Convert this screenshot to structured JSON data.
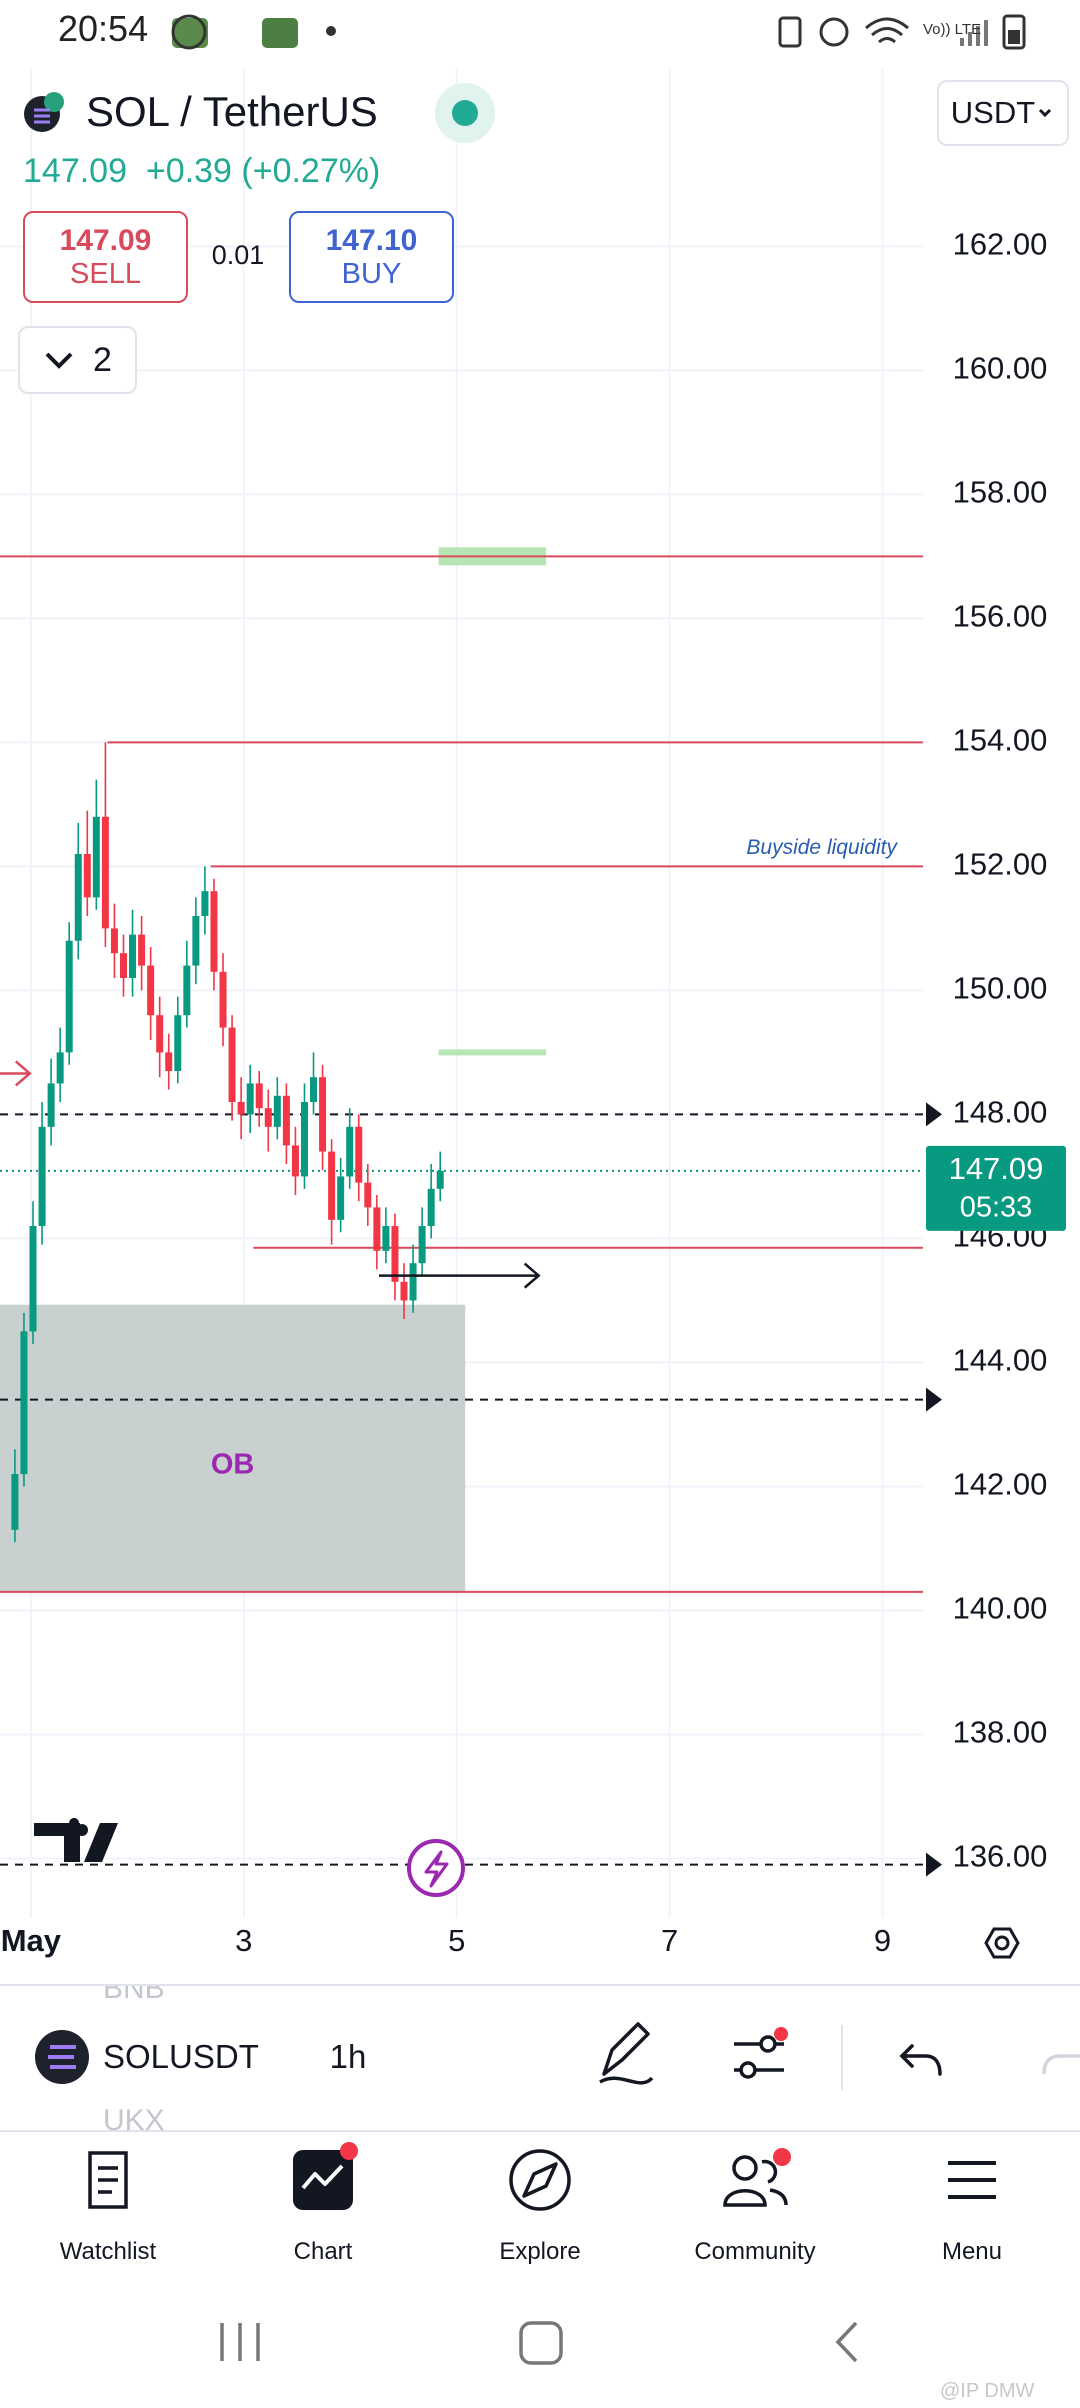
{
  "status_bar": {
    "time": "20:54"
  },
  "header": {
    "symbol": "SOL / TetherUS",
    "currency": "USDT",
    "price": "147.09",
    "change": "+0.39",
    "change_pct": "(+0.27%)"
  },
  "trade": {
    "sell_price": "147.09",
    "sell_label": "SELL",
    "spread": "0.01",
    "buy_price": "147.10",
    "buy_label": "BUY"
  },
  "indicators_toggle": "2",
  "chart_data": {
    "type": "candlestick",
    "x": [
      0.85,
      0.935,
      1.02,
      1.105,
      1.19,
      1.275,
      1.36,
      1.445,
      1.53,
      1.615,
      1.7,
      1.785,
      1.87,
      1.955,
      2.04,
      2.125,
      2.21,
      2.295,
      2.38,
      2.465,
      2.55,
      2.635,
      2.72,
      2.805,
      2.89,
      2.975,
      3.06,
      3.145,
      3.23,
      3.315,
      3.4,
      3.485,
      3.57,
      3.655,
      3.74,
      3.825,
      3.91,
      3.995,
      4.08,
      4.165,
      4.25,
      4.335,
      4.42,
      4.505,
      4.59,
      4.675,
      4.76,
      4.845
    ],
    "open": [
      141.3,
      142.2,
      144.5,
      146.2,
      147.8,
      148.5,
      149.0,
      150.8,
      152.2,
      151.5,
      152.8,
      151.0,
      150.6,
      150.2,
      150.9,
      150.4,
      149.6,
      149.0,
      148.7,
      149.6,
      150.4,
      151.2,
      151.6,
      150.3,
      149.4,
      148.2,
      148.0,
      148.5,
      148.1,
      147.8,
      148.3,
      147.5,
      147.0,
      148.2,
      148.6,
      147.4,
      146.3,
      147.0,
      147.8,
      146.9,
      146.5,
      145.8,
      146.2,
      145.3,
      145.0,
      145.6,
      146.2,
      146.8
    ],
    "high": [
      142.6,
      144.8,
      146.6,
      148.2,
      148.9,
      149.4,
      151.1,
      152.7,
      152.9,
      153.4,
      154.0,
      151.4,
      150.9,
      151.3,
      151.2,
      150.7,
      149.9,
      149.3,
      149.9,
      150.8,
      151.5,
      152.0,
      151.8,
      150.6,
      149.6,
      148.6,
      148.8,
      148.7,
      148.4,
      148.6,
      148.5,
      147.8,
      148.5,
      149.0,
      148.8,
      147.6,
      147.3,
      148.1,
      148.0,
      147.2,
      146.7,
      146.5,
      146.4,
      145.6,
      145.9,
      146.5,
      147.2,
      147.4
    ],
    "low": [
      141.1,
      142.0,
      144.3,
      145.9,
      147.5,
      148.2,
      148.8,
      150.5,
      151.2,
      151.3,
      150.7,
      150.2,
      149.9,
      149.9,
      150.0,
      149.2,
      148.6,
      148.4,
      148.5,
      149.4,
      150.1,
      150.9,
      150.0,
      149.1,
      147.9,
      147.6,
      147.7,
      147.8,
      147.4,
      147.6,
      147.2,
      146.7,
      146.8,
      148.0,
      147.1,
      145.9,
      146.1,
      146.8,
      146.6,
      146.2,
      145.5,
      145.6,
      145.0,
      144.7,
      144.8,
      145.4,
      146.0,
      146.6
    ],
    "close": [
      142.2,
      144.5,
      146.2,
      147.8,
      148.5,
      149.0,
      150.8,
      152.2,
      151.5,
      152.8,
      151.0,
      150.6,
      150.2,
      150.9,
      150.4,
      149.6,
      149.0,
      148.7,
      149.6,
      150.4,
      151.2,
      151.6,
      150.3,
      149.4,
      148.2,
      148.0,
      148.5,
      148.1,
      147.8,
      148.3,
      147.5,
      147.0,
      148.2,
      148.6,
      147.4,
      146.3,
      147.0,
      147.8,
      146.9,
      146.5,
      145.8,
      146.2,
      145.3,
      145.0,
      145.6,
      146.2,
      146.8,
      147.09
    ],
    "up_color": "#089981",
    "down_color": "#f23645",
    "xlim": [
      0.71,
      9.38
    ],
    "xticks": [
      {
        "value": 1,
        "label": "May"
      },
      3,
      5,
      7,
      9
    ],
    "ylim": [
      135.04,
      164.86
    ],
    "yticks": [
      {
        "value": 136,
        "label": "136.00"
      },
      {
        "value": 138,
        "label": "138.00"
      },
      {
        "value": 140,
        "label": "140.00"
      },
      {
        "value": 142,
        "label": "142.00"
      },
      {
        "value": 144,
        "label": "144.00"
      },
      {
        "value": 146,
        "label": "146.00"
      },
      {
        "value": 148,
        "label": "148.00"
      },
      {
        "value": 150,
        "label": "150.00"
      },
      {
        "value": 152,
        "label": "152.00"
      },
      {
        "value": 154,
        "label": "154.00"
      },
      {
        "value": 156,
        "label": "156.00"
      },
      {
        "value": 158,
        "label": "158.00"
      },
      {
        "value": 160,
        "label": "160.00"
      },
      {
        "value": 162,
        "label": "162.00"
      }
    ],
    "grid": true,
    "last_price": {
      "value": 147.09,
      "label": "147.09"
    },
    "countdown": "05:33",
    "hlines": [
      {
        "price": 157.0,
        "start": 0.71,
        "color": "#d94a5c"
      },
      {
        "price": 154.0,
        "start": 1.72,
        "color": "#d94a5c"
      },
      {
        "price": 152.0,
        "start": 2.69,
        "color": "#d94a5c",
        "label": "Buyside liquidity"
      },
      {
        "price": 145.85,
        "start": 3.09,
        "color": "#d94a5c"
      },
      {
        "price": 140.3,
        "start": 0.71,
        "color": "#d94a5c"
      }
    ],
    "dashed_lines": [
      148.0,
      143.4,
      135.9
    ],
    "zones": [
      {
        "price": 157.0,
        "start": 4.83,
        "end": 5.84,
        "color": "#b7e6b5"
      },
      {
        "price": 149.0,
        "start": 4.83,
        "end": 5.84,
        "color": "#b7e6b5"
      }
    ],
    "arrows": [
      {
        "price": 145.4,
        "start": 4.27,
        "end": 5.77,
        "color": "#131722"
      },
      {
        "price": 148.66,
        "start": 0.71,
        "end": 0.99,
        "color": "#d94a5c"
      }
    ],
    "order_block": {
      "label": "OB",
      "top": 144.93,
      "bottom": 140.31,
      "end": 5.08,
      "color": "#c9d1d0"
    }
  },
  "toolbar": {
    "symbol": "SOLUSDT",
    "interval": "1h",
    "ghost_items": [
      "BNB",
      "UKX"
    ]
  },
  "nav": [
    "Watchlist",
    "Chart",
    "Explore",
    "Community",
    "Menu"
  ],
  "watermark": "@IP DMW"
}
